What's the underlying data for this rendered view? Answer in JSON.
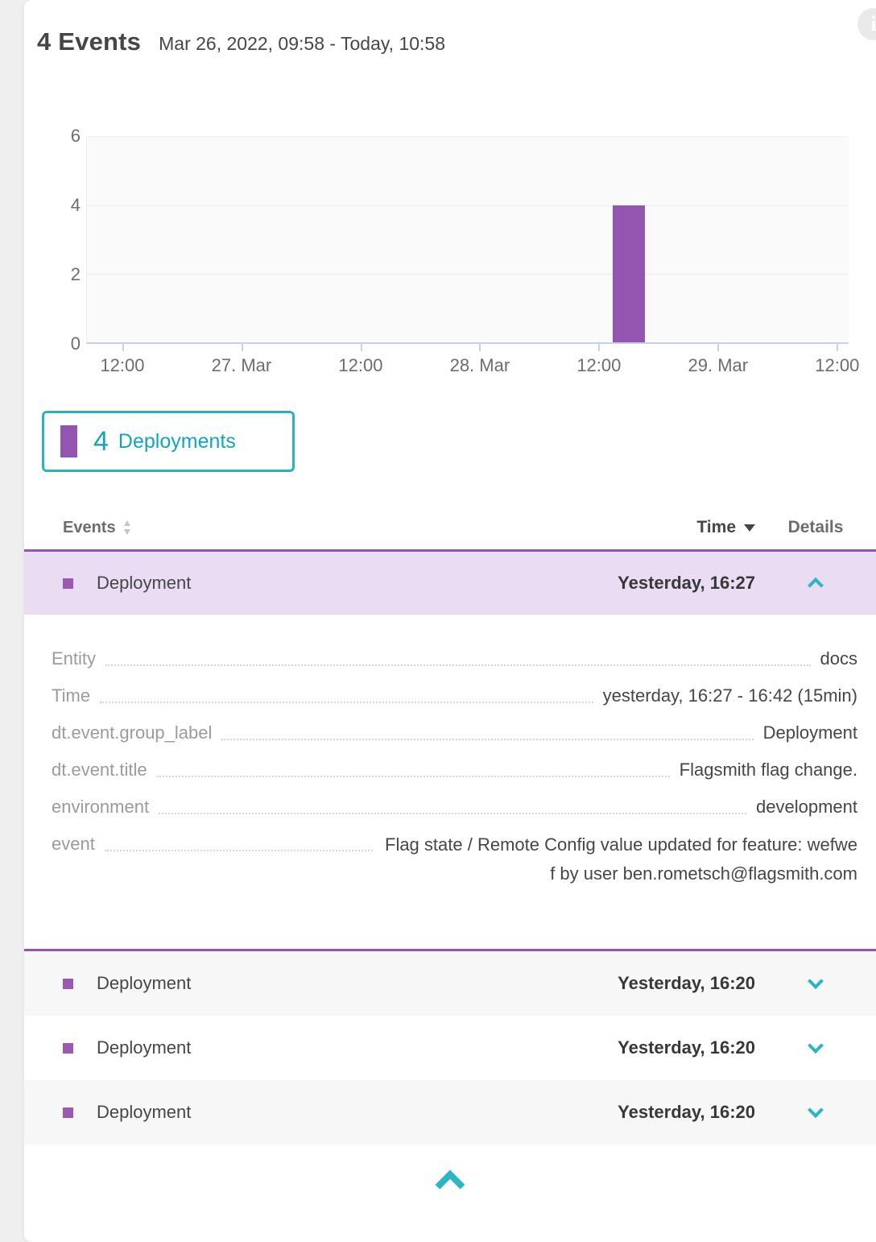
{
  "header": {
    "title": "4 Events",
    "timeframe": "Mar 26, 2022, 09:58 - Today, 10:58"
  },
  "icons": {
    "info": "i"
  },
  "chart_data": {
    "type": "bar",
    "x_ticks": [
      "12:00",
      "27. Mar",
      "12:00",
      "28. Mar",
      "12:00",
      "29. Mar",
      "12:00"
    ],
    "y_ticks": [
      "6",
      "4",
      "2",
      "0"
    ],
    "ylim": [
      0,
      6
    ],
    "grid": "horizontal",
    "x_range": [
      "Mar 26, 2022, 09:58",
      "Today, 10:58"
    ],
    "series": [
      {
        "name": "Deployments",
        "color": "#9355b0",
        "data": [
          {
            "x": "28. Mar ~14:00",
            "y": 4
          }
        ]
      }
    ],
    "bar_geometry": {
      "left_frac": 0.69,
      "width_frac": 0.0422,
      "value": 4
    }
  },
  "legend": {
    "count": "4",
    "label": "Deployments",
    "swatch_color": "#9355b0"
  },
  "table": {
    "columns": {
      "events": "Events",
      "time": "Time",
      "details": "Details"
    },
    "rows": [
      {
        "label": "Deployment",
        "time": "Yesterday, 16:27",
        "expanded": true
      },
      {
        "label": "Deployment",
        "time": "Yesterday, 16:20",
        "expanded": false
      },
      {
        "label": "Deployment",
        "time": "Yesterday, 16:20",
        "expanded": false
      },
      {
        "label": "Deployment",
        "time": "Yesterday, 16:20",
        "expanded": false
      }
    ],
    "expanded_details": [
      {
        "key": "Entity",
        "value": "docs"
      },
      {
        "key": "Time",
        "value": "yesterday, 16:27 - 16:42 (15min)"
      },
      {
        "key": "dt.event.group_label",
        "value": "Deployment"
      },
      {
        "key": "dt.event.title",
        "value": "Flagsmith flag change."
      },
      {
        "key": "environment",
        "value": "development"
      },
      {
        "key": "event",
        "value": "Flag state / Remote Config value updated for feature: wefwef by user ben.rometsch@flagsmith.com"
      }
    ]
  },
  "colors": {
    "accent_teal": "#14a5b8",
    "teal_border": "#2ab2c2",
    "purple": "#9355b0",
    "purple_row_bg": "#e9dcf3",
    "stripe_gray": "#f7f7f7",
    "text_dark": "#454646",
    "text_gray": "#6d6d6d",
    "key_gray": "#9b9b9b",
    "axis_blue": "#c7d3e3"
  }
}
